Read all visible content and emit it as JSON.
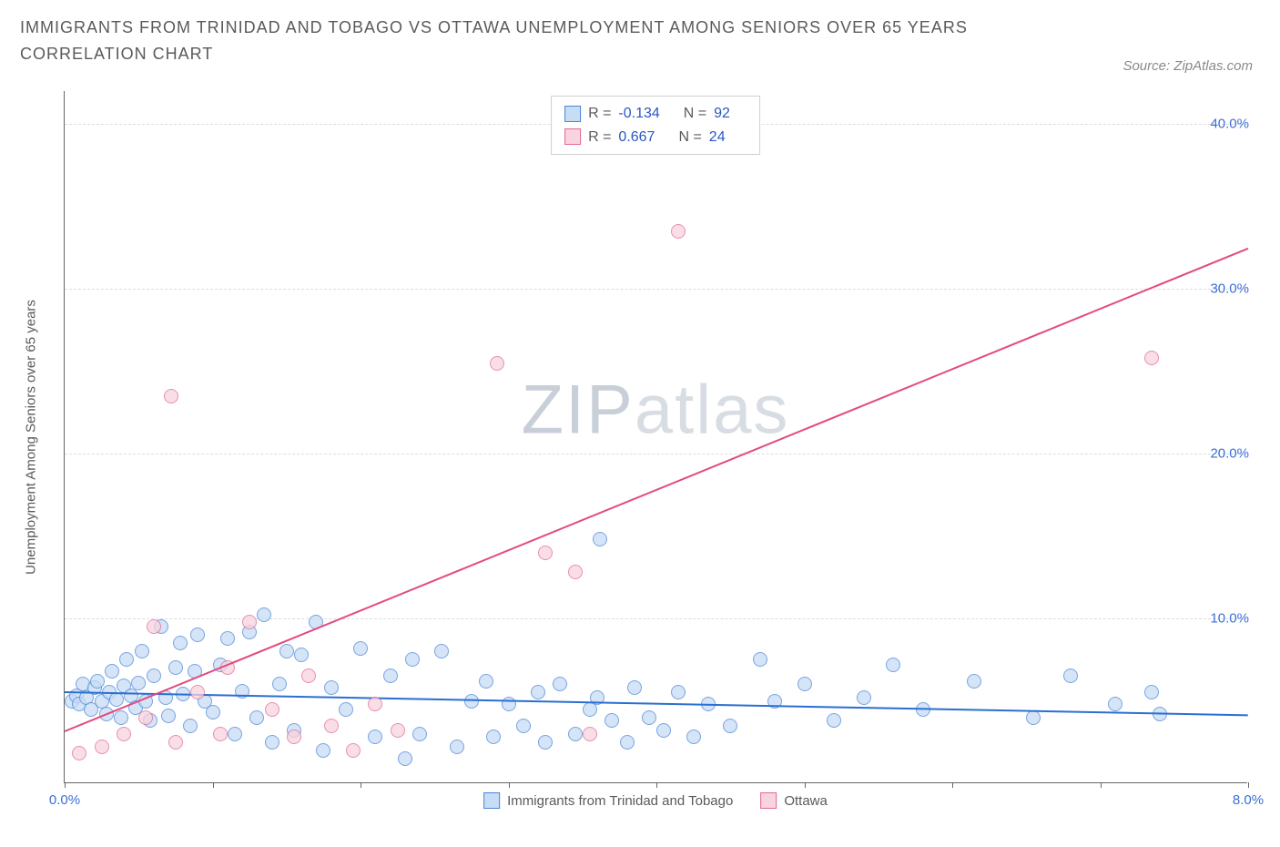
{
  "title": "IMMIGRANTS FROM TRINIDAD AND TOBAGO VS OTTAWA UNEMPLOYMENT AMONG SENIORS OVER 65 YEARS CORRELATION CHART",
  "source": "Source: ZipAtlas.com",
  "watermark_a": "ZIP",
  "watermark_b": "atlas",
  "ylabel": "Unemployment Among Seniors over 65 years",
  "chart": {
    "type": "scatter",
    "xlim": [
      0.0,
      8.0
    ],
    "ylim": [
      0.0,
      42.0
    ],
    "y_ticks": [
      10.0,
      20.0,
      30.0,
      40.0
    ],
    "y_tick_labels": [
      "10.0%",
      "20.0%",
      "30.0%",
      "40.0%"
    ],
    "x_ticks_minor": [
      0.0,
      1.0,
      2.0,
      3.0,
      4.0,
      5.0,
      6.0,
      7.0,
      8.0
    ],
    "x_tick_labels": {
      "0.0": "0.0%",
      "8.0": "8.0%"
    },
    "background_color": "#ffffff",
    "grid_color": "#dcdcdc",
    "axis_color": "#666666",
    "tick_label_color": "#3b6fd6",
    "label_fontsize": 15,
    "title_fontsize": 18
  },
  "series": {
    "blue": {
      "name": "Immigrants from Trinidad and Tobago",
      "r_value": "-0.134",
      "n_value": "92",
      "marker_fill": "#c7dcf5",
      "marker_stroke": "#4a87d6",
      "marker_opacity": 0.75,
      "marker_size": 16,
      "line_color": "#2a6fd0",
      "trend": {
        "x1": 0.0,
        "y1": 5.6,
        "x2": 8.0,
        "y2": 4.2
      },
      "points": [
        [
          0.05,
          5.0
        ],
        [
          0.08,
          5.3
        ],
        [
          0.1,
          4.8
        ],
        [
          0.12,
          6.0
        ],
        [
          0.15,
          5.2
        ],
        [
          0.18,
          4.5
        ],
        [
          0.2,
          5.8
        ],
        [
          0.22,
          6.2
        ],
        [
          0.25,
          5.0
        ],
        [
          0.28,
          4.2
        ],
        [
          0.3,
          5.5
        ],
        [
          0.32,
          6.8
        ],
        [
          0.35,
          5.1
        ],
        [
          0.38,
          4.0
        ],
        [
          0.4,
          5.9
        ],
        [
          0.42,
          7.5
        ],
        [
          0.45,
          5.3
        ],
        [
          0.48,
          4.6
        ],
        [
          0.5,
          6.1
        ],
        [
          0.52,
          8.0
        ],
        [
          0.55,
          5.0
        ],
        [
          0.58,
          3.8
        ],
        [
          0.6,
          6.5
        ],
        [
          0.65,
          9.5
        ],
        [
          0.68,
          5.2
        ],
        [
          0.7,
          4.1
        ],
        [
          0.75,
          7.0
        ],
        [
          0.78,
          8.5
        ],
        [
          0.8,
          5.4
        ],
        [
          0.85,
          3.5
        ],
        [
          0.88,
          6.8
        ],
        [
          0.9,
          9.0
        ],
        [
          0.95,
          5.0
        ],
        [
          1.0,
          4.3
        ],
        [
          1.05,
          7.2
        ],
        [
          1.1,
          8.8
        ],
        [
          1.15,
          3.0
        ],
        [
          1.2,
          5.6
        ],
        [
          1.25,
          9.2
        ],
        [
          1.3,
          4.0
        ],
        [
          1.35,
          10.2
        ],
        [
          1.4,
          2.5
        ],
        [
          1.45,
          6.0
        ],
        [
          1.5,
          8.0
        ],
        [
          1.55,
          3.2
        ],
        [
          1.6,
          7.8
        ],
        [
          1.7,
          9.8
        ],
        [
          1.75,
          2.0
        ],
        [
          1.8,
          5.8
        ],
        [
          1.9,
          4.5
        ],
        [
          2.0,
          8.2
        ],
        [
          2.1,
          2.8
        ],
        [
          2.2,
          6.5
        ],
        [
          2.3,
          1.5
        ],
        [
          2.35,
          7.5
        ],
        [
          2.4,
          3.0
        ],
        [
          2.55,
          8.0
        ],
        [
          2.65,
          2.2
        ],
        [
          2.75,
          5.0
        ],
        [
          2.85,
          6.2
        ],
        [
          2.9,
          2.8
        ],
        [
          3.0,
          4.8
        ],
        [
          3.1,
          3.5
        ],
        [
          3.2,
          5.5
        ],
        [
          3.25,
          2.5
        ],
        [
          3.35,
          6.0
        ],
        [
          3.45,
          3.0
        ],
        [
          3.55,
          4.5
        ],
        [
          3.6,
          5.2
        ],
        [
          3.62,
          14.8
        ],
        [
          3.7,
          3.8
        ],
        [
          3.8,
          2.5
        ],
        [
          3.85,
          5.8
        ],
        [
          3.95,
          4.0
        ],
        [
          4.05,
          3.2
        ],
        [
          4.15,
          5.5
        ],
        [
          4.25,
          2.8
        ],
        [
          4.35,
          4.8
        ],
        [
          4.5,
          3.5
        ],
        [
          4.7,
          7.5
        ],
        [
          4.8,
          5.0
        ],
        [
          5.0,
          6.0
        ],
        [
          5.2,
          3.8
        ],
        [
          5.4,
          5.2
        ],
        [
          5.6,
          7.2
        ],
        [
          5.8,
          4.5
        ],
        [
          6.15,
          6.2
        ],
        [
          6.55,
          4.0
        ],
        [
          6.8,
          6.5
        ],
        [
          7.1,
          4.8
        ],
        [
          7.35,
          5.5
        ],
        [
          7.4,
          4.2
        ]
      ]
    },
    "pink": {
      "name": "Ottawa",
      "r_value": "0.667",
      "n_value": "24",
      "marker_fill": "#f7d4df",
      "marker_stroke": "#e26a93",
      "marker_opacity": 0.75,
      "marker_size": 16,
      "line_color": "#e24b7e",
      "trend": {
        "x1": 0.0,
        "y1": 3.2,
        "x2": 8.0,
        "y2": 32.5
      },
      "points": [
        [
          0.1,
          1.8
        ],
        [
          0.25,
          2.2
        ],
        [
          0.4,
          3.0
        ],
        [
          0.55,
          4.0
        ],
        [
          0.6,
          9.5
        ],
        [
          0.72,
          23.5
        ],
        [
          0.75,
          2.5
        ],
        [
          0.9,
          5.5
        ],
        [
          1.05,
          3.0
        ],
        [
          1.1,
          7.0
        ],
        [
          1.25,
          9.8
        ],
        [
          1.4,
          4.5
        ],
        [
          1.55,
          2.8
        ],
        [
          1.65,
          6.5
        ],
        [
          1.8,
          3.5
        ],
        [
          1.95,
          2.0
        ],
        [
          2.1,
          4.8
        ],
        [
          2.25,
          3.2
        ],
        [
          2.92,
          25.5
        ],
        [
          3.25,
          14.0
        ],
        [
          3.45,
          12.8
        ],
        [
          3.55,
          3.0
        ],
        [
          4.15,
          33.5
        ],
        [
          7.35,
          25.8
        ]
      ]
    }
  },
  "legend_top": {
    "r_label": "R =",
    "n_label": "N ="
  }
}
